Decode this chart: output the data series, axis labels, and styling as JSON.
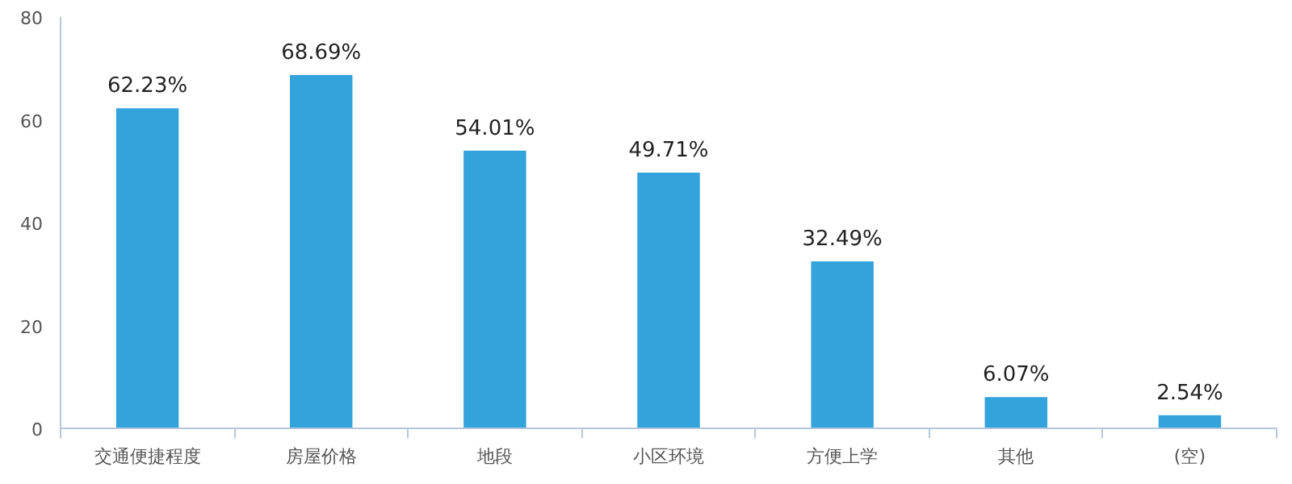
{
  "chart_data": {
    "type": "bar",
    "categories": [
      "交通便捷程度",
      "房屋价格",
      "地段",
      "小区环境",
      "方便上学",
      "其他",
      "(空)"
    ],
    "values": [
      62.23,
      68.69,
      54.01,
      49.71,
      32.49,
      6.07,
      2.54
    ],
    "value_labels": [
      "62.23%",
      "68.69%",
      "54.01%",
      "49.71%",
      "32.49%",
      "6.07%",
      "2.54%"
    ],
    "color": "#33a3dc",
    "ylim": [
      0,
      80
    ],
    "yticks": [
      0,
      20,
      40,
      60,
      80
    ],
    "grid": false
  }
}
